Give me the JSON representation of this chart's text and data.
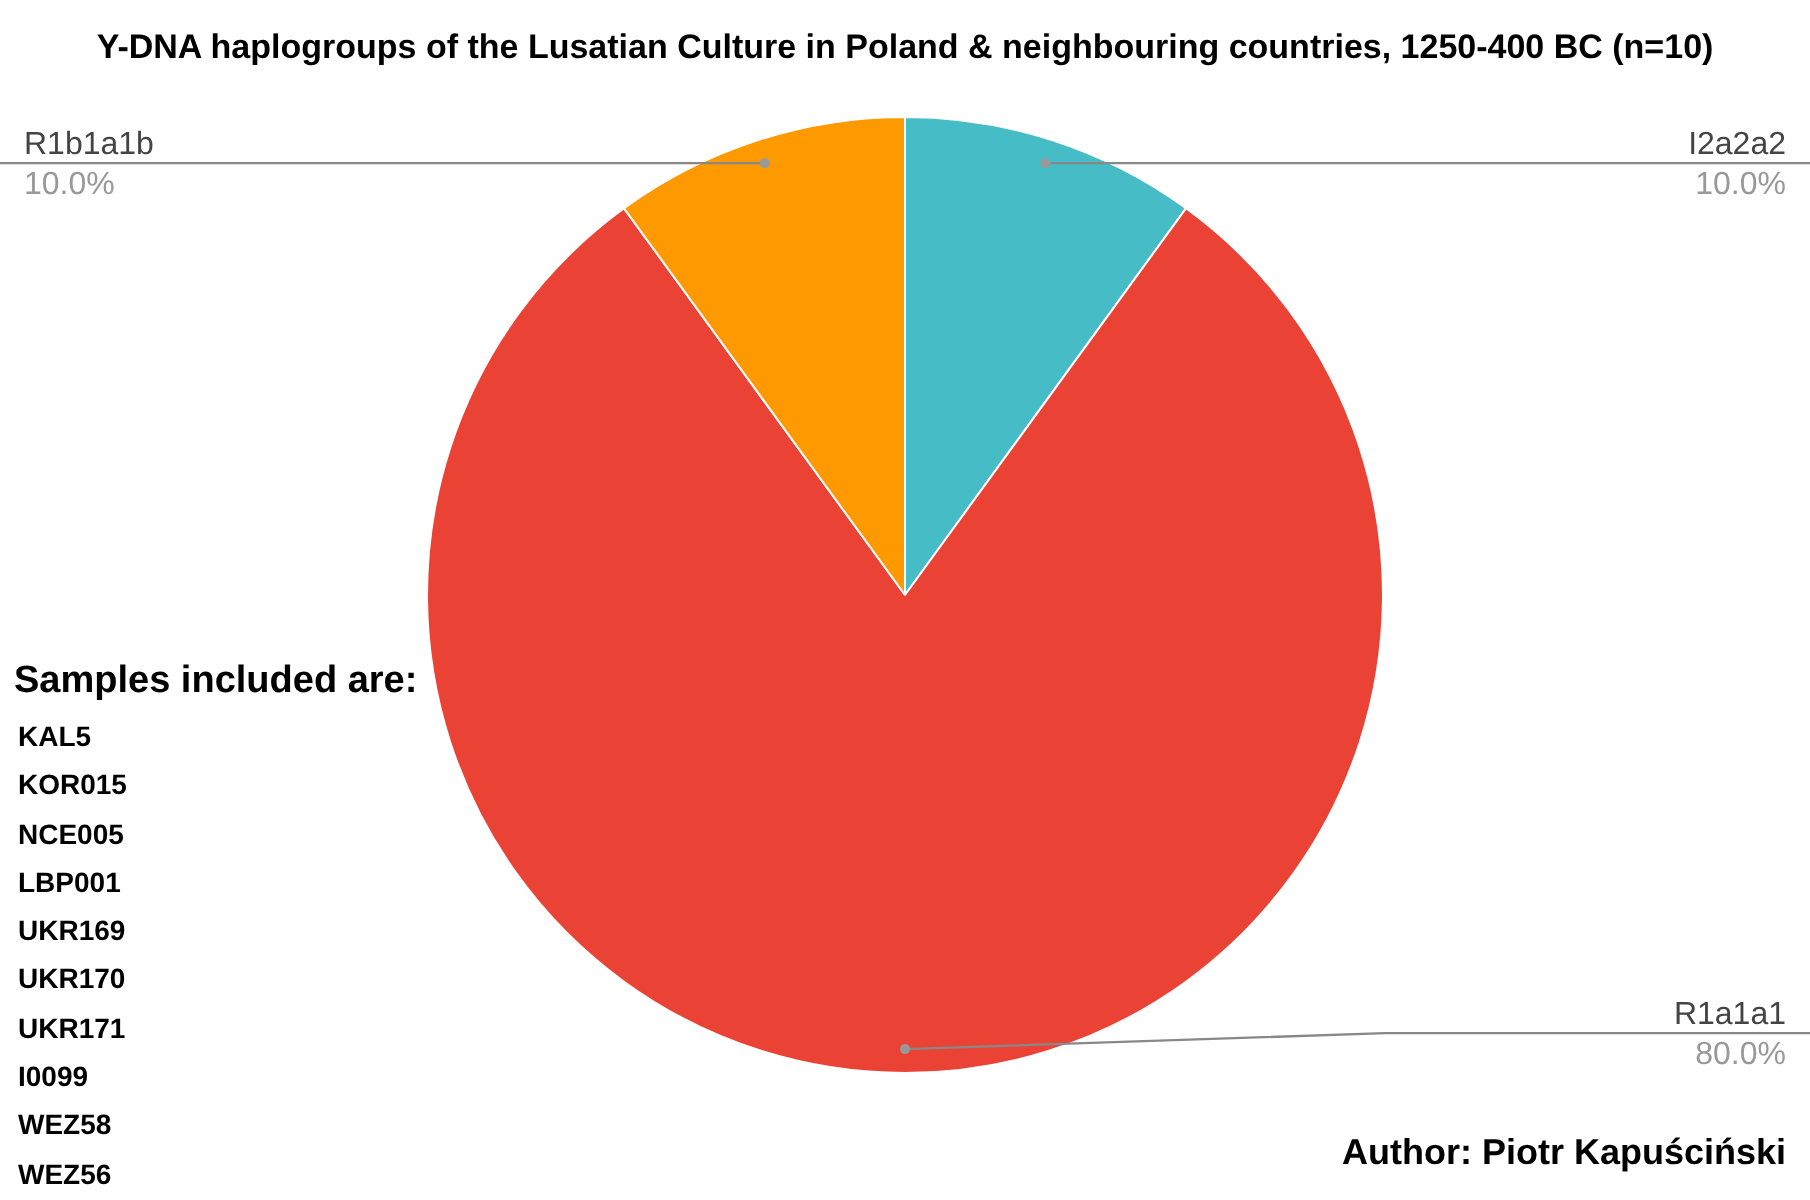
{
  "chart_data": {
    "type": "pie",
    "title": "Y-DNA haplogroups of the Lusatian Culture in Poland & neighbouring countries, 1250-400 BC (n=10)",
    "categories": [
      "I2a2a2",
      "R1a1a1",
      "R1b1a1b"
    ],
    "values": [
      10,
      80,
      10
    ],
    "colors": [
      "#46bdc6",
      "#ea4335",
      "#ff9900"
    ],
    "value_labels": [
      "10.0%",
      "80.0%",
      "10.0%"
    ],
    "legend": false,
    "annotations": [
      "Samples included are:",
      "KAL5",
      "KOR015",
      "NCE005",
      "LBP001",
      "UKR169",
      "UKR170",
      "UKR171",
      "I0099",
      "WEZ58",
      "WEZ56",
      "Author: Piotr Kapuściński"
    ]
  }
}
